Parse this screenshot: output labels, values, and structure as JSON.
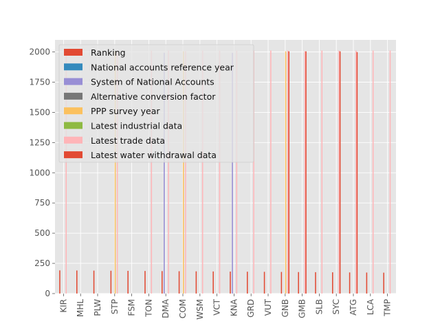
{
  "chart_data": {
    "type": "bar",
    "title": "",
    "xlabel": "",
    "ylabel": "",
    "ylim": [
      0,
      2100
    ],
    "yticks": [
      0,
      250,
      500,
      750,
      1000,
      1250,
      1500,
      1750,
      2000
    ],
    "grid": true,
    "legend_position": "upper-left",
    "categories": [
      "KIR",
      "MHL",
      "PLW",
      "STP",
      "FSM",
      "TON",
      "DMA",
      "COM",
      "WSM",
      "VCT",
      "KNA",
      "GRD",
      "VUT",
      "GNB",
      "GMB",
      "SLB",
      "SYC",
      "ATG",
      "LCA",
      "TMP"
    ],
    "series": [
      {
        "name": "Ranking",
        "color": "#E24A33",
        "values": [
          192,
          191,
          190,
          189,
          188,
          187,
          186,
          185,
          184,
          183,
          182,
          181,
          180,
          179,
          178,
          177,
          176,
          175,
          174,
          173
        ]
      },
      {
        "name": "National accounts reference year",
        "color": "#348ABD",
        "values": [
          0,
          0,
          0,
          0,
          0,
          0,
          0,
          0,
          0,
          0,
          0,
          0,
          0,
          0,
          0,
          0,
          0,
          0,
          0,
          0
        ]
      },
      {
        "name": "System of National Accounts",
        "color": "#988ED5",
        "values": [
          0,
          0,
          0,
          0,
          0,
          0,
          1993,
          0,
          0,
          0,
          1993,
          0,
          0,
          0,
          0,
          0,
          0,
          0,
          0,
          0
        ]
      },
      {
        "name": "Alternative conversion factor",
        "color": "#777777",
        "values": [
          0,
          0,
          0,
          0,
          0,
          0,
          0,
          0,
          0,
          0,
          0,
          0,
          0,
          0,
          0,
          0,
          0,
          0,
          0,
          0
        ]
      },
      {
        "name": "PPP survey year",
        "color": "#FBC15E",
        "values": [
          0,
          0,
          0,
          2005,
          0,
          0,
          0,
          2005,
          0,
          0,
          0,
          0,
          0,
          2005,
          0,
          0,
          0,
          0,
          0,
          0
        ]
      },
      {
        "name": "Latest industrial data",
        "color": "#8EBA42",
        "values": [
          0,
          0,
          0,
          0,
          0,
          0,
          0,
          0,
          0,
          0,
          0,
          0,
          0,
          0,
          0,
          0,
          0,
          0,
          0,
          0
        ]
      },
      {
        "name": "Latest trade data",
        "color": "#FFB5B8",
        "values": [
          2012,
          0,
          0,
          2010,
          0,
          2012,
          2012,
          2007,
          2012,
          2012,
          2012,
          2012,
          2012,
          2012,
          2006,
          2012,
          2012,
          2012,
          2012,
          2012
        ]
      },
      {
        "name": "Latest water withdrawal data",
        "color": "#E24A33",
        "values": [
          0,
          0,
          0,
          0,
          0,
          0,
          0,
          0,
          0,
          0,
          0,
          0,
          0,
          2005,
          2005,
          0,
          2005,
          1999,
          0,
          0
        ]
      }
    ]
  }
}
